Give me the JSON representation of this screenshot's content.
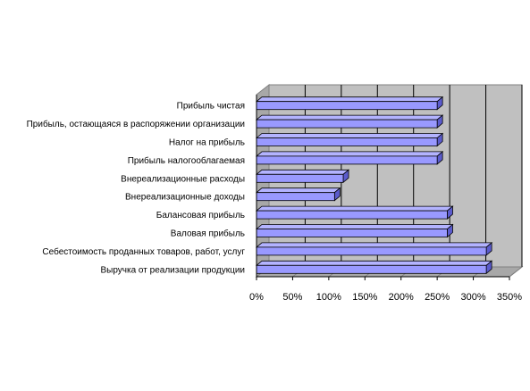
{
  "chart_data": {
    "type": "bar",
    "orientation": "horizontal",
    "three_d": true,
    "categories": [
      "Выручка от реализации продукции",
      "Себестоимость проданных товаров, работ, услуг",
      "Валовая прибыль",
      "Балансовая прибыль",
      "Внереализационные доходы",
      "Внереализационные расходы",
      "Прибыль налогооблагаемая",
      "Налог на прибыль",
      "Прибыль, остающаяся в распоряжении организации",
      "Прибыль чистая"
    ],
    "values": [
      318,
      318,
      264,
      264,
      108,
      120,
      250,
      250,
      250,
      250
    ],
    "value_unit": "%",
    "xlim": [
      0,
      350
    ],
    "x_ticks": [
      "0%",
      "50%",
      "100%",
      "150%",
      "200%",
      "250%",
      "300%",
      "350%"
    ],
    "title": "",
    "xlabel": "",
    "ylabel": "",
    "grid": true,
    "legend": "none",
    "colors": {
      "bar_front": "#9999ff",
      "bar_top": "#b3b3ff",
      "bar_side": "#5b5bcc",
      "bar_outline": "#000000",
      "wall": "#c0c0c0",
      "wall_dark": "#a8a8a8",
      "gridline": "#000000"
    }
  }
}
